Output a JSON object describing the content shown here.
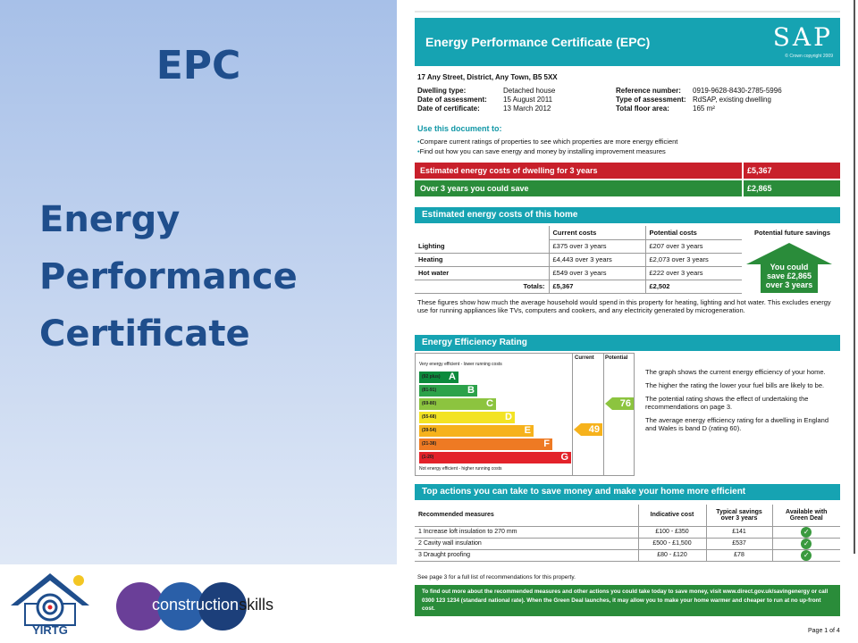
{
  "slide": {
    "heading": "EPC",
    "subtitle_lines": [
      "Energy",
      "Performance",
      "Certificate"
    ]
  },
  "logos": {
    "yirtg": "YIRTG",
    "construction_skills": {
      "part1": "construction",
      "part2": "skills"
    }
  },
  "epc": {
    "title": "Energy Performance Certificate (EPC)",
    "sap_logo": "SAP",
    "crown_note": "© Crown copyright 2009",
    "address": "17 Any Street, District, Any Town, B5 5XX",
    "info": {
      "dwelling_type_label": "Dwelling type:",
      "dwelling_type": "Detached house",
      "date_assessment_label": "Date of assessment:",
      "date_assessment": "15 August 2011",
      "date_certificate_label": "Date of certificate:",
      "date_certificate": "13 March 2012",
      "ref_label": "Reference number:",
      "ref": "0919-9628-8430-2785-5996",
      "type_label": "Type of assessment:",
      "type": "RdSAP, existing dwelling",
      "floor_label": "Total floor area:",
      "floor": "165 m²"
    },
    "use_title": "Use this document to:",
    "use_items": [
      "Compare current ratings of properties to see which properties are more energy efficient",
      "Find out how you can save energy and money by installing improvement measures"
    ],
    "cost_bar": {
      "label": "Estimated energy costs of dwelling for 3 years",
      "value": "£5,367"
    },
    "save_bar": {
      "label": "Over 3 years you could save",
      "value": "£2,865"
    },
    "estimated_section": "Estimated energy costs of this home",
    "est_headers": [
      "Current costs",
      "Potential costs"
    ],
    "future_header": "Potential future savings",
    "est_rows": [
      {
        "item": "Lighting",
        "current": "£375 over 3 years",
        "potential": "£207 over 3 years"
      },
      {
        "item": "Heating",
        "current": "£4,443 over 3 years",
        "potential": "£2,073 over 3 years"
      },
      {
        "item": "Hot water",
        "current": "£549 over 3 years",
        "potential": "£222 over 3 years"
      }
    ],
    "totals": {
      "label": "Totals:",
      "current": "£5,367",
      "potential": "£2,502"
    },
    "future_lines": [
      "You could",
      "save £2,865",
      "over 3 years"
    ],
    "figures_note": "These figures show how much the average household would spend in this property for heating, lighting and hot water. This excludes energy use for running appliances like TVs, computers and cookers, and any electricity generated by microgeneration.",
    "rating_section": "Energy Efficiency Rating",
    "rating_col_current": "Current",
    "rating_col_potential": "Potential",
    "very_efficient": "Very energy efficient - lower running costs",
    "not_efficient": "Not energy efficient - higher running costs",
    "bands": [
      {
        "range": "(92 plus)",
        "letter": "A",
        "color": "#0c8a3c"
      },
      {
        "range": "(81-91)",
        "letter": "B",
        "color": "#2ca24a"
      },
      {
        "range": "(69-80)",
        "letter": "C",
        "color": "#8cc43f"
      },
      {
        "range": "(55-68)",
        "letter": "D",
        "color": "#f3e324"
      },
      {
        "range": "(39-54)",
        "letter": "E",
        "color": "#f6b21c"
      },
      {
        "range": "(21-38)",
        "letter": "F",
        "color": "#ee7a23"
      },
      {
        "range": "(1-20)",
        "letter": "G",
        "color": "#e3222a"
      }
    ],
    "current_rating": "49",
    "potential_rating": "76",
    "rating_notes": [
      "The graph shows the current energy efficiency of your home.",
      "The higher the rating the lower your fuel bills are likely to be.",
      "The potential rating shows the effect of undertaking the recommendations on page 3.",
      "The average energy efficiency rating for a dwelling in England and Wales is band D (rating 60)."
    ],
    "actions_section": "Top actions you can take to save money and make your home more efficient",
    "action_headers": [
      "Recommended measures",
      "Indicative cost",
      "Typical savings over 3 years",
      "Available with Green Deal"
    ],
    "actions": [
      {
        "measure": "1  Increase loft insulation to 270 mm",
        "cost": "£100 - £350",
        "savings": "£141"
      },
      {
        "measure": "2  Cavity wall insulation",
        "cost": "£500 - £1,500",
        "savings": "£537"
      },
      {
        "measure": "3  Draught proofing",
        "cost": "£80 - £120",
        "savings": "£78"
      }
    ],
    "see_page": "See page 3 for a full list of recommendations for this property.",
    "green_box": "To find out more about the recommended measures and other actions you could take today to save money, visit www.direct.gov.uk/savingenergy or call 0300 123 1234 (standard national rate). When the Green Deal launches, it may allow you to make your home warmer and cheaper to run at no up-front cost.",
    "page_num": "Page 1 of 4"
  }
}
